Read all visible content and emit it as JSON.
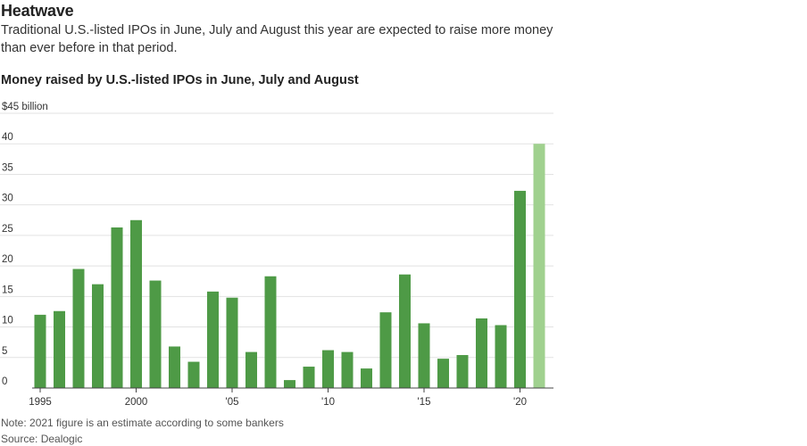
{
  "headline": "Heatwave",
  "dek": "Traditional U.S.-listed IPOs in June, July and August this year are expected to raise more money than ever before in that period.",
  "note": "Note: 2021 figure is an estimate according to some bankers",
  "source": "Source: Dealogic",
  "colors": {
    "bar": "#4e9a46",
    "estimate": "#a0d18f",
    "grid": "#e2e2e2",
    "axis": "#444444"
  },
  "chart_data": {
    "type": "bar",
    "title": "Money raised by U.S.-listed IPOs in June, July and August",
    "ylabel": "$45 billion",
    "ylim": [
      0,
      45
    ],
    "y_ticks": [
      {
        "value": 45,
        "label": "$45 billion"
      },
      {
        "value": 40,
        "label": "40"
      },
      {
        "value": 35,
        "label": "35"
      },
      {
        "value": 30,
        "label": "30"
      },
      {
        "value": 25,
        "label": "25"
      },
      {
        "value": 20,
        "label": "20"
      },
      {
        "value": 15,
        "label": "15"
      },
      {
        "value": 10,
        "label": "10"
      },
      {
        "value": 5,
        "label": "5"
      },
      {
        "value": 0,
        "label": "0"
      }
    ],
    "x_ticks": [
      {
        "year": 1995,
        "label": "1995"
      },
      {
        "year": 2000,
        "label": "2000"
      },
      {
        "year": 2005,
        "label": "'05"
      },
      {
        "year": 2010,
        "label": "'10"
      },
      {
        "year": 2015,
        "label": "'15"
      },
      {
        "year": 2020,
        "label": "'20"
      }
    ],
    "categories": [
      1995,
      1996,
      1997,
      1998,
      1999,
      2000,
      2001,
      2002,
      2003,
      2004,
      2005,
      2006,
      2007,
      2008,
      2009,
      2010,
      2011,
      2012,
      2013,
      2014,
      2015,
      2016,
      2017,
      2018,
      2019,
      2020,
      2021
    ],
    "values": [
      12,
      12.6,
      19.5,
      17,
      26.3,
      27.5,
      17.6,
      6.8,
      4.3,
      15.8,
      14.8,
      5.9,
      18.3,
      1.3,
      3.5,
      6.2,
      5.9,
      3.2,
      12.4,
      18.6,
      10.6,
      4.8,
      5.4,
      11.4,
      10.3,
      32.3,
      40
    ],
    "estimate": [
      2021
    ],
    "grid": true
  }
}
